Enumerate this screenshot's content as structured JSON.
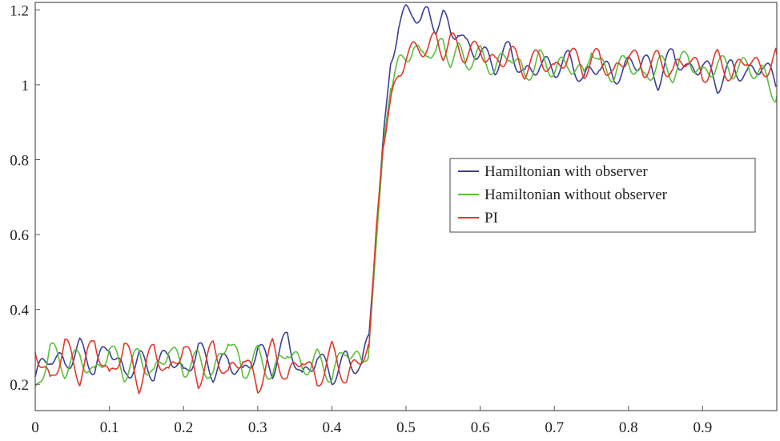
{
  "chart_data": {
    "type": "line",
    "title": "",
    "xlabel": "",
    "ylabel": "",
    "xlim": [
      0,
      1
    ],
    "ylim": [
      0.13,
      1.22
    ],
    "xticks": [
      0,
      0.1,
      0.2,
      0.3,
      0.4,
      0.5,
      0.6,
      0.7,
      0.8,
      0.9
    ],
    "xtick_labels": [
      "0",
      "0.1",
      "0.2",
      "0.3",
      "0.4",
      "0.5",
      "0.6",
      "0.7",
      "0.8",
      "0.9"
    ],
    "yticks": [
      0.2,
      0.4,
      0.6,
      0.8,
      1,
      1.2
    ],
    "ytick_labels": [
      "0.2",
      "0.4",
      "0.6",
      "0.8",
      "1",
      "1.2"
    ],
    "grid": false,
    "legend": "center-right",
    "series": [
      {
        "name": "Hamiltonian with observer",
        "color": "#3b3f94",
        "x": [
          0,
          0.02,
          0.04,
          0.06,
          0.08,
          0.1,
          0.12,
          0.14,
          0.16,
          0.18,
          0.2,
          0.22,
          0.24,
          0.26,
          0.28,
          0.3,
          0.32,
          0.34,
          0.36,
          0.38,
          0.4,
          0.42,
          0.44,
          0.45,
          0.46,
          0.47,
          0.48,
          0.49,
          0.5,
          0.51,
          0.52,
          0.53,
          0.54,
          0.55,
          0.56,
          0.57,
          0.58,
          0.6,
          0.62,
          0.64,
          0.66,
          0.68,
          0.7,
          0.72,
          0.74,
          0.76,
          0.78,
          0.8,
          0.82,
          0.84,
          0.86,
          0.88,
          0.9,
          0.92,
          0.94,
          0.96,
          0.98,
          1.0
        ],
        "y": [
          0.22,
          0.28,
          0.25,
          0.3,
          0.24,
          0.31,
          0.22,
          0.27,
          0.23,
          0.29,
          0.22,
          0.3,
          0.23,
          0.27,
          0.22,
          0.3,
          0.24,
          0.33,
          0.21,
          0.28,
          0.22,
          0.27,
          0.24,
          0.33,
          0.6,
          0.88,
          1.07,
          1.16,
          1.19,
          1.2,
          1.17,
          1.19,
          1.16,
          1.18,
          1.14,
          1.15,
          1.1,
          1.09,
          1.05,
          1.1,
          1.02,
          1.06,
          1.04,
          1.07,
          1.01,
          1.06,
          1.02,
          1.05,
          1.07,
          1.01,
          1.09,
          1.03,
          1.06,
          1.0,
          1.05,
          1.02,
          1.06,
          1.0
        ]
      },
      {
        "name": "Hamiltonian without observer",
        "color": "#5cbd3a",
        "x": [
          0,
          0.02,
          0.04,
          0.06,
          0.08,
          0.1,
          0.12,
          0.14,
          0.16,
          0.18,
          0.2,
          0.22,
          0.24,
          0.26,
          0.28,
          0.3,
          0.32,
          0.34,
          0.36,
          0.38,
          0.4,
          0.42,
          0.44,
          0.45,
          0.46,
          0.47,
          0.48,
          0.49,
          0.5,
          0.51,
          0.52,
          0.53,
          0.54,
          0.55,
          0.56,
          0.57,
          0.58,
          0.6,
          0.62,
          0.64,
          0.66,
          0.68,
          0.7,
          0.72,
          0.74,
          0.75,
          0.76,
          0.78,
          0.8,
          0.82,
          0.84,
          0.86,
          0.88,
          0.9,
          0.92,
          0.94,
          0.96,
          0.98,
          1.0
        ],
        "y": [
          0.17,
          0.3,
          0.24,
          0.28,
          0.22,
          0.3,
          0.23,
          0.28,
          0.22,
          0.3,
          0.24,
          0.27,
          0.22,
          0.33,
          0.23,
          0.28,
          0.22,
          0.3,
          0.24,
          0.27,
          0.22,
          0.3,
          0.25,
          0.3,
          0.58,
          0.85,
          1.0,
          1.05,
          1.08,
          1.1,
          1.07,
          1.1,
          1.08,
          1.11,
          1.07,
          1.09,
          1.06,
          1.08,
          1.04,
          1.09,
          1.02,
          1.07,
          1.04,
          1.06,
          1.02,
          1.11,
          1.05,
          1.03,
          1.07,
          1.01,
          1.06,
          1.03,
          1.08,
          1.02,
          1.06,
          1.04,
          1.05,
          1.03,
          0.97
        ]
      },
      {
        "name": "PI",
        "color": "#e0392b",
        "x": [
          0,
          0.02,
          0.04,
          0.06,
          0.08,
          0.1,
          0.12,
          0.14,
          0.16,
          0.18,
          0.2,
          0.22,
          0.24,
          0.26,
          0.28,
          0.3,
          0.32,
          0.34,
          0.36,
          0.38,
          0.4,
          0.42,
          0.44,
          0.45,
          0.46,
          0.47,
          0.48,
          0.49,
          0.5,
          0.51,
          0.52,
          0.53,
          0.54,
          0.55,
          0.56,
          0.57,
          0.58,
          0.6,
          0.62,
          0.64,
          0.66,
          0.68,
          0.7,
          0.72,
          0.74,
          0.76,
          0.78,
          0.8,
          0.82,
          0.84,
          0.86,
          0.88,
          0.9,
          0.92,
          0.94,
          0.96,
          0.98,
          1.0
        ],
        "y": [
          0.3,
          0.2,
          0.31,
          0.22,
          0.32,
          0.21,
          0.31,
          0.2,
          0.3,
          0.22,
          0.31,
          0.21,
          0.3,
          0.22,
          0.28,
          0.19,
          0.3,
          0.21,
          0.28,
          0.2,
          0.29,
          0.21,
          0.28,
          0.3,
          0.62,
          0.86,
          0.95,
          1.03,
          1.08,
          1.09,
          1.1,
          1.1,
          1.12,
          1.09,
          1.12,
          1.1,
          1.08,
          1.1,
          1.05,
          1.09,
          1.04,
          1.08,
          1.03,
          1.09,
          1.04,
          1.08,
          1.02,
          1.09,
          1.04,
          1.07,
          1.03,
          1.08,
          1.02,
          1.07,
          1.02,
          1.08,
          1.03,
          1.08
        ]
      }
    ]
  }
}
